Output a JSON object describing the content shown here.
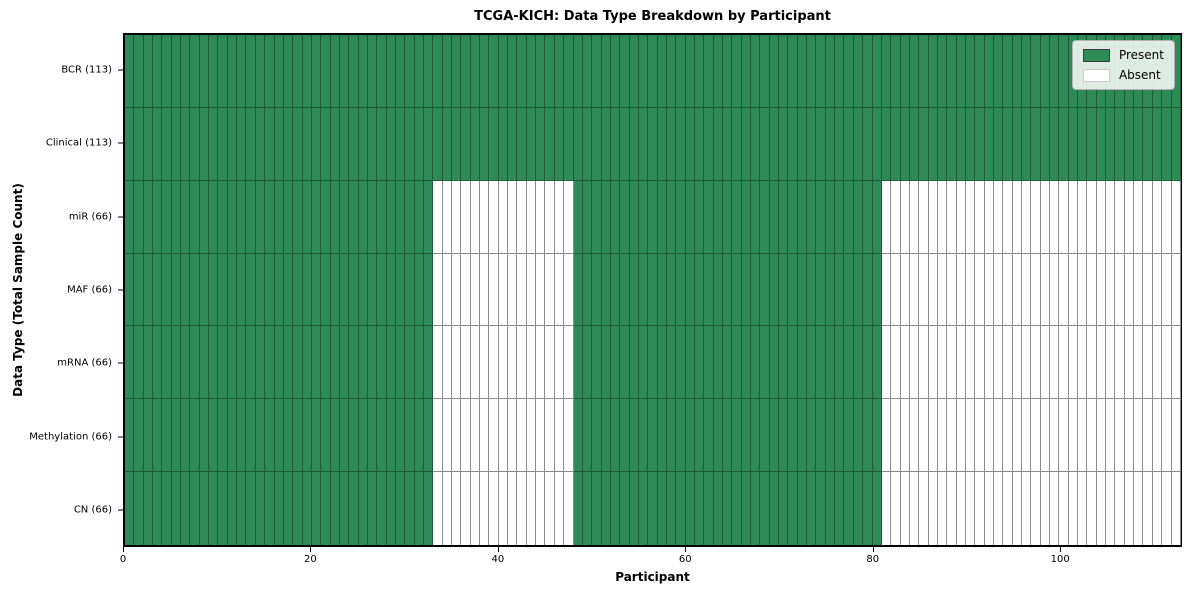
{
  "chart_data": {
    "type": "heatmap",
    "title": "TCGA-KICH: Data Type Breakdown by Participant",
    "xlabel": "Participant",
    "ylabel": "Data Type (Total Sample Count)",
    "xlim": [
      0,
      113
    ],
    "n_participants": 113,
    "x_ticks": [
      0,
      20,
      40,
      60,
      80,
      100
    ],
    "grid": false,
    "colors": {
      "present": "#2e8b57",
      "absent": "#ffffff",
      "present_edge": "#1e5c38",
      "absent_edge": "#8c8c8c"
    },
    "legend": {
      "position": "upper right",
      "items": [
        {
          "label": "Present",
          "state": "present"
        },
        {
          "label": "Absent",
          "state": "absent"
        }
      ]
    },
    "rows": [
      {
        "label": "BCR (113)",
        "data_type": "BCR",
        "total_samples": 113,
        "present_ranges": [
          [
            0,
            113
          ]
        ]
      },
      {
        "label": "Clinical (113)",
        "data_type": "Clinical",
        "total_samples": 113,
        "present_ranges": [
          [
            0,
            113
          ]
        ]
      },
      {
        "label": "miR (66)",
        "data_type": "miR",
        "total_samples": 66,
        "present_ranges": [
          [
            0,
            33
          ],
          [
            48,
            81
          ]
        ]
      },
      {
        "label": "MAF (66)",
        "data_type": "MAF",
        "total_samples": 66,
        "present_ranges": [
          [
            0,
            33
          ],
          [
            48,
            81
          ]
        ]
      },
      {
        "label": "mRNA (66)",
        "data_type": "mRNA",
        "total_samples": 66,
        "present_ranges": [
          [
            0,
            33
          ],
          [
            48,
            81
          ]
        ]
      },
      {
        "label": "Methylation (66)",
        "data_type": "Methylation",
        "total_samples": 66,
        "present_ranges": [
          [
            0,
            33
          ],
          [
            48,
            81
          ]
        ]
      },
      {
        "label": "CN (66)",
        "data_type": "CN",
        "total_samples": 66,
        "present_ranges": [
          [
            0,
            33
          ],
          [
            48,
            81
          ]
        ]
      }
    ]
  }
}
